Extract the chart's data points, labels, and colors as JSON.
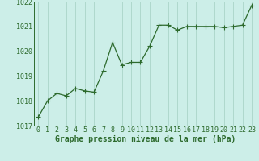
{
  "x": [
    0,
    1,
    2,
    3,
    4,
    5,
    6,
    7,
    8,
    9,
    10,
    11,
    12,
    13,
    14,
    15,
    16,
    17,
    18,
    19,
    20,
    21,
    22,
    23
  ],
  "y": [
    1017.35,
    1018.0,
    1018.3,
    1018.2,
    1018.5,
    1018.4,
    1018.35,
    1019.2,
    1020.35,
    1019.45,
    1019.55,
    1019.55,
    1020.2,
    1021.05,
    1021.05,
    1020.85,
    1021.0,
    1021.0,
    1021.0,
    1021.0,
    1020.95,
    1021.0,
    1021.05,
    1021.85
  ],
  "ylim": [
    1017,
    1022
  ],
  "yticks": [
    1017,
    1018,
    1019,
    1020,
    1021,
    1022
  ],
  "xticks": [
    0,
    1,
    2,
    3,
    4,
    5,
    6,
    7,
    8,
    9,
    10,
    11,
    12,
    13,
    14,
    15,
    16,
    17,
    18,
    19,
    20,
    21,
    22,
    23
  ],
  "line_color": "#2d6a2d",
  "marker_color": "#2d6a2d",
  "bg_color": "#cceee8",
  "grid_color": "#aad4c8",
  "xlabel": "Graphe pression niveau de la mer (hPa)",
  "xlabel_color": "#2d6a2d",
  "xlabel_fontsize": 7,
  "tick_color": "#2d6a2d",
  "tick_fontsize": 6,
  "line_width": 0.9,
  "marker_size": 2.5
}
